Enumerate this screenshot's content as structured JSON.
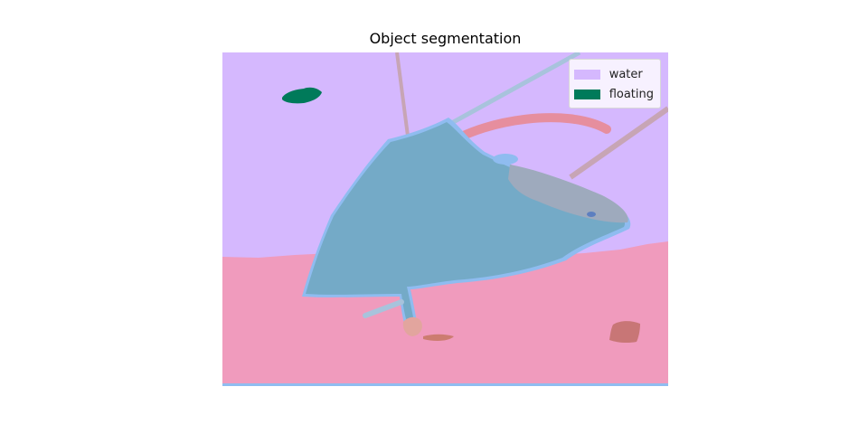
{
  "figure": {
    "title": "Object segmentation"
  },
  "legend": {
    "items": [
      {
        "label": "water",
        "color": "#d5b8fe"
      },
      {
        "label": "floating",
        "color": "#007a5a"
      }
    ]
  },
  "segments": {
    "water_color": "#d5b8fe",
    "ground_color": "#f09bbd",
    "floating_color": "#007a5a",
    "object_color": "#74aac7",
    "object_outline_color": "#8fbcf0",
    "rod_color": "#c7a5b5",
    "arc_color": "#e68e9e",
    "wing_color": "#9eaabd",
    "small_blob_color": "#c87676"
  }
}
